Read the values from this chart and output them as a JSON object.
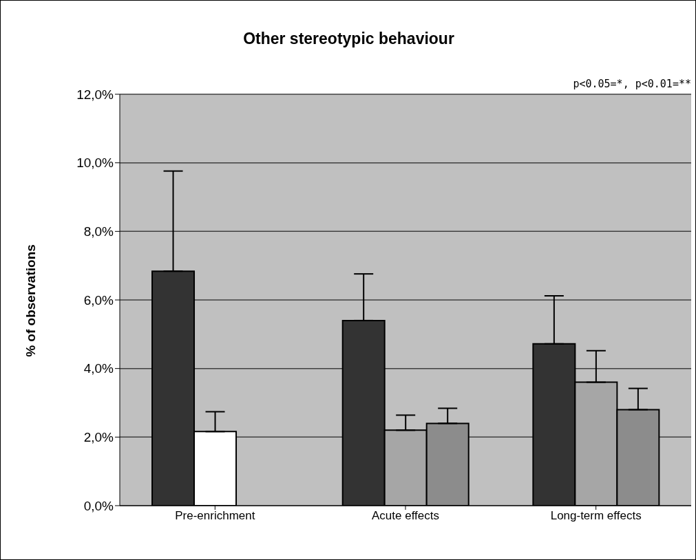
{
  "chart_data": {
    "type": "bar",
    "title": "Other stereotypic behaviour",
    "ylabel": "% of observations",
    "annotations": [
      "p<0.05=*, p<0.01=**"
    ],
    "categories": [
      "Pre-enrichment",
      "Acute effects",
      "Long-term effects"
    ],
    "series": [
      {
        "color": "#333333",
        "values": [
          6.84,
          5.4,
          4.72
        ],
        "errors": [
          [
            6.84,
            9.76
          ],
          [
            5.4,
            6.76
          ],
          [
            4.72,
            6.12
          ]
        ]
      },
      {
        "color": "#a6a6a6",
        "colors": [
          "#ffffff",
          "#a6a6a6",
          "#a6a6a6"
        ],
        "values": [
          2.16,
          2.2,
          3.6
        ],
        "errors": [
          [
            2.16,
            2.74
          ],
          [
            2.2,
            2.64
          ],
          [
            3.6,
            4.52
          ]
        ]
      },
      {
        "color": "#8c8c8c",
        "values": [
          null,
          2.4,
          2.8
        ],
        "errors": [
          null,
          [
            2.4,
            2.84
          ],
          [
            2.8,
            3.42
          ]
        ]
      }
    ],
    "ylim": [
      0,
      12
    ],
    "yticks": [
      {
        "value": 0,
        "label": "0,0%"
      },
      {
        "value": 2,
        "label": "2,0%"
      },
      {
        "value": 4,
        "label": "4,0%"
      },
      {
        "value": 6,
        "label": "6,0%"
      },
      {
        "value": 8,
        "label": "8,0%"
      },
      {
        "value": 10,
        "label": "10,0%"
      },
      {
        "value": 12,
        "label": "12,0%"
      }
    ],
    "grid": "y"
  }
}
